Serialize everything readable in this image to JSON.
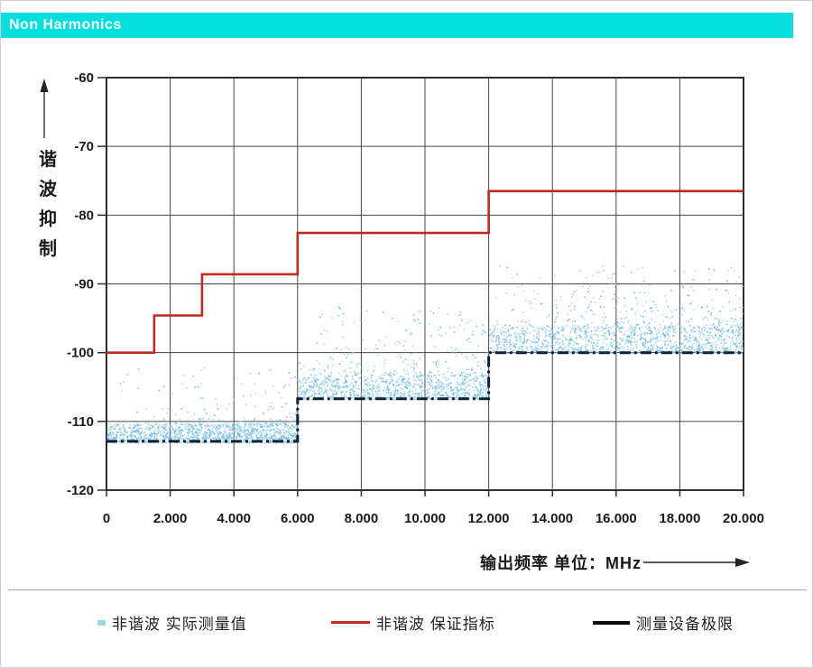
{
  "header": {
    "title": "Non Harmonics",
    "bar_color": "#06dede",
    "text_color": "#ffffff"
  },
  "chart_data": {
    "type": "scatter",
    "title": "Non Harmonics",
    "xlabel": "输出频率  单位：MHz",
    "ylabel": "谐波抑制",
    "xlim": [
      0,
      20
    ],
    "ylim": [
      -120,
      -60
    ],
    "x_tick_values": [
      0,
      2,
      4,
      6,
      8,
      10,
      12,
      14,
      16,
      18,
      20
    ],
    "x_tick_labels": [
      "0",
      "2.000",
      "4.000",
      "6.000",
      "8.000",
      "10.000",
      "12.000",
      "14.000",
      "16.000",
      "18.000",
      "20.000"
    ],
    "y_tick_values": [
      -60,
      -70,
      -80,
      -90,
      -100,
      -110,
      -120
    ],
    "y_tick_labels": [
      "-60",
      "-70",
      "-80",
      "-90",
      "-100",
      "-110",
      "-120"
    ],
    "grid": true,
    "grid_color": "#474747",
    "frame_color": "#2e2e2e",
    "legend_position": "bottom",
    "series": [
      {
        "name": "非谐波 保证指标",
        "type": "step_line",
        "color": "#bf2a22",
        "width": 2.6,
        "points": [
          [
            0,
            -100
          ],
          [
            1.5,
            -100
          ],
          [
            1.5,
            -94.6
          ],
          [
            3,
            -94.6
          ],
          [
            3,
            -88.6
          ],
          [
            6,
            -88.6
          ],
          [
            6,
            -82.6
          ],
          [
            12,
            -82.6
          ],
          [
            12,
            -76.5
          ],
          [
            20,
            -76.5
          ]
        ]
      },
      {
        "name": "测量设备极限",
        "type": "step_line_dashed",
        "color": "#121d36",
        "width": 3,
        "dash": "12 4 3 4",
        "points": [
          [
            0,
            -112.9
          ],
          [
            6,
            -112.9
          ],
          [
            6,
            -106.7
          ],
          [
            12,
            -106.7
          ],
          [
            12,
            -100
          ],
          [
            20,
            -100
          ]
        ]
      },
      {
        "name": "非谐波 实际测量值",
        "type": "scatter",
        "colors": [
          "#9bd1ea",
          "#5fb1dc"
        ],
        "segments": [
          {
            "x_range": [
              0,
              6
            ],
            "dense_band": [
              -113.0,
              -110.3
            ],
            "sparse_top": -102.0,
            "dense_count": 1250,
            "sparse_count": 150,
            "x_bias": 0.6,
            "tail_power": 2.6
          },
          {
            "x_range": [
              6,
              12
            ],
            "dense_band": [
              -106.7,
              -103.2
            ],
            "sparse_top": -93.2,
            "dense_count": 950,
            "sparse_count": 250,
            "x_bias": 0.8,
            "tail_power": 2.2
          },
          {
            "x_range": [
              12,
              20
            ],
            "dense_band": [
              -100.0,
              -96.3
            ],
            "sparse_top": -87.3,
            "dense_count": 1150,
            "sparse_count": 380,
            "x_bias": 0.85,
            "tail_power": 2.2
          }
        ]
      }
    ]
  },
  "legend": {
    "items": [
      {
        "label": "非谐波 实际测量值",
        "marker": "dot",
        "color": "#9fd6e6"
      },
      {
        "label": "非谐波 保证指标",
        "marker": "line",
        "color": "#bf2a22"
      },
      {
        "label": "测量设备极限",
        "marker": "line",
        "color": "#111111"
      }
    ]
  }
}
